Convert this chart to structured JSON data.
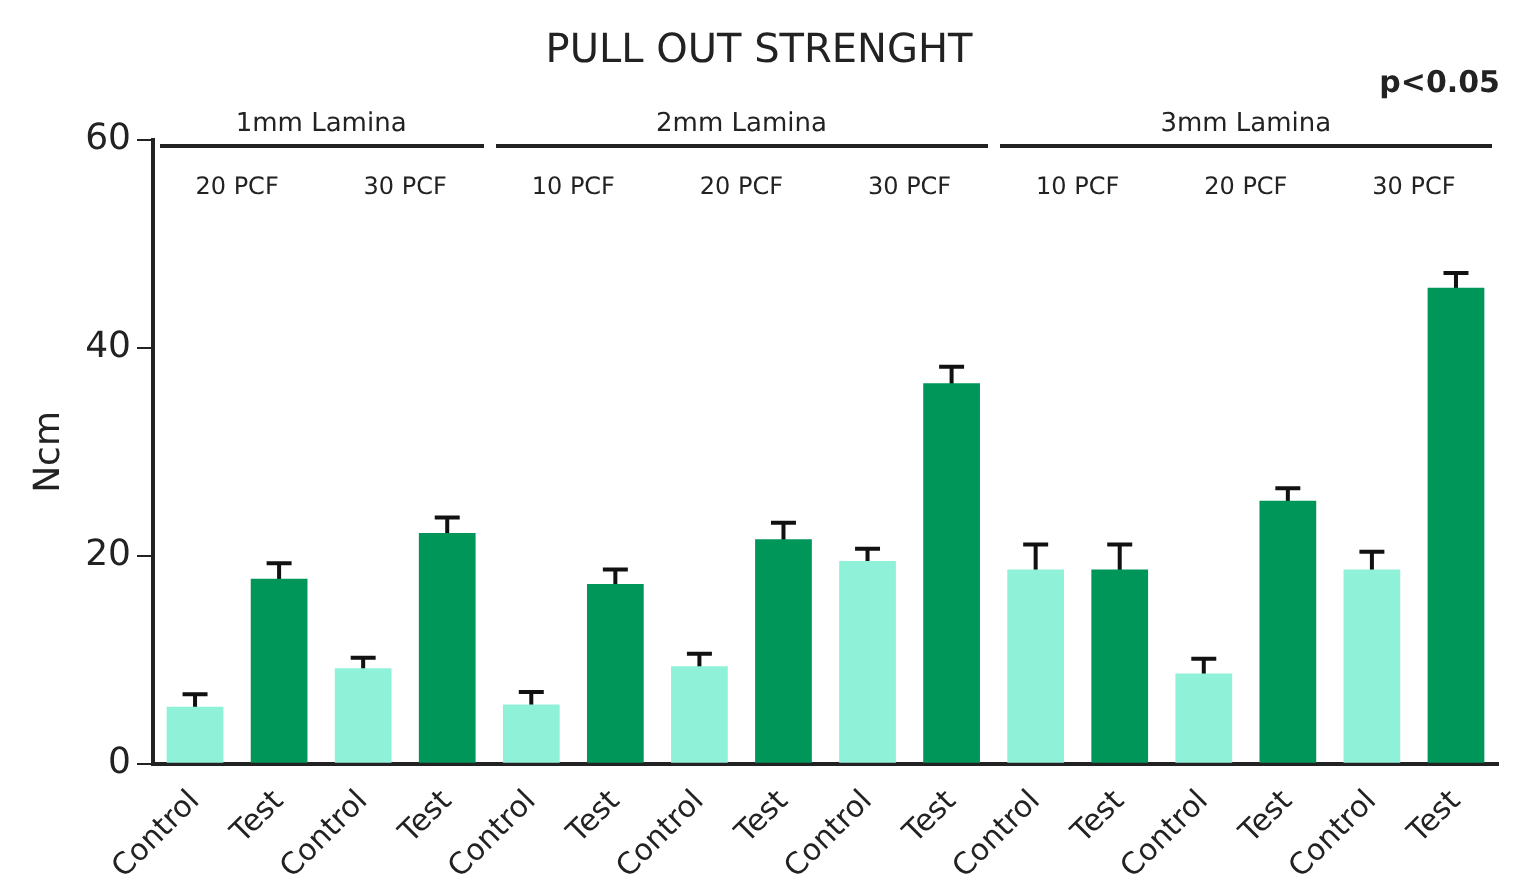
{
  "chart_data": {
    "type": "bar",
    "title": "PULL OUT STRENGHT",
    "ylabel": "Ncm",
    "categories": [
      "Control",
      "Test",
      "Control",
      "Test",
      "Control",
      "Test",
      "Control",
      "Test",
      "Control",
      "Test",
      "Control",
      "Test",
      "Control",
      "Test",
      "Control",
      "Test"
    ],
    "values": [
      5.5,
      17.8,
      9.2,
      22.2,
      5.7,
      17.3,
      9.4,
      21.6,
      19.5,
      36.6,
      18.7,
      18.7,
      8.7,
      25.3,
      18.7,
      45.8
    ],
    "errors": [
      1.2,
      1.5,
      1.0,
      1.5,
      1.2,
      1.4,
      1.2,
      1.6,
      1.2,
      1.6,
      2.4,
      2.4,
      1.4,
      1.2,
      1.7,
      1.4
    ],
    "colors": [
      "#8ff2d8",
      "#00965a",
      "#8ff2d8",
      "#00965a",
      "#8ff2d8",
      "#00965a",
      "#8ff2d8",
      "#00965a",
      "#8ff2d8",
      "#00965a",
      "#8ff2d8",
      "#00965a",
      "#8ff2d8",
      "#00965a",
      "#8ff2d8",
      "#00965a"
    ],
    "ylim": [
      0,
      60
    ],
    "yticks": [
      0,
      20,
      40,
      60
    ],
    "grid": false,
    "legend": false,
    "annotations": [
      "1mm Lamina",
      "2mm Lamina",
      "3mm Lamina",
      "20 PCF",
      "30 PCF",
      "10 PCF",
      "20 PCF",
      "30 PCF",
      "10 PCF",
      "20 PCF",
      "30 PCF",
      "p<0.05"
    ]
  }
}
